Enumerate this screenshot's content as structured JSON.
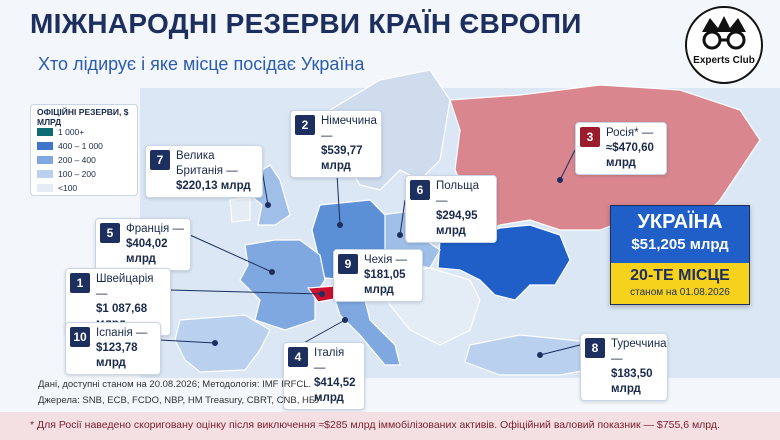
{
  "header": {
    "title": "МІЖНАРОДНІ РЕЗЕРВИ КРАЇН ЄВРОПИ",
    "subtitle": "Хто лідирує і яке місце посідає Україна",
    "logo": "Experts Club"
  },
  "legend": {
    "title": "ОФІЦІЙНІ РЕЗЕРВИ, $ МЛРД",
    "items": [
      "1 000+",
      "400 – 1 000",
      "200 – 400",
      "100 – 200",
      "<100"
    ]
  },
  "callouts": [
    {
      "rank": "2",
      "name": "Німеччина —",
      "value": "$539,77 млрд"
    },
    {
      "rank": "3",
      "name": "Росія* —",
      "value": "≈$470,60 млрд"
    },
    {
      "rank": "7",
      "name": "Велика Британія —",
      "value": "$220,13 млрд"
    },
    {
      "rank": "6",
      "name": "Польща —",
      "value": "$294,95 млрд"
    },
    {
      "rank": "5",
      "name": "Франція —",
      "value": "$404,02 млрд"
    },
    {
      "rank": "9",
      "name": "Чехія —",
      "value": "$181,05 млрд"
    },
    {
      "rank": "1",
      "name": "Швейцарія —",
      "value": "$1 087,68 млрд"
    },
    {
      "rank": "10",
      "name": "Іспанія —",
      "value": "$123,78 млрд"
    },
    {
      "rank": "4",
      "name": "Італія —",
      "value": "$414,52 млрд"
    },
    {
      "rank": "8",
      "name": "Туреччина —",
      "value": "$183,50 млрд"
    }
  ],
  "ukraine": {
    "name": "УКРАЇНА",
    "value": "$51,205 млрд",
    "rank": "20-ТЕ МІСЦЕ",
    "date": "станом на 01.08.2026"
  },
  "footer": {
    "data": "Дані, доступні станом на 20.08.2026; Методологія: IMF IRFCL.",
    "sources": "Джерела: SNB, ECB, FCDO, NBP, HM Treasury, CBRT, CNB, НБУ",
    "note": "* Для Росії наведено скориговану оцінку після виключення ≈$285 млрд іммобілізованих активів. Офіційний валовий показник — $755,6 млрд."
  }
}
